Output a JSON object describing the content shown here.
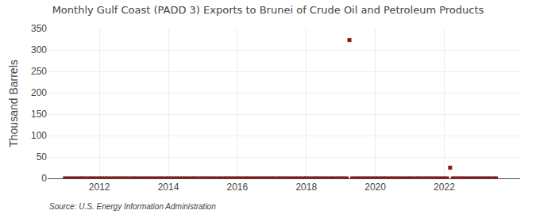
{
  "chart_data": {
    "type": "scatter",
    "title": "Monthly Gulf Coast (PADD 3) Exports to Brunei of Crude Oil and Petroleum Products",
    "ylabel": "Thousand Barrels",
    "annotations": [
      "Source: U.S. Energy Information Administration"
    ],
    "x": [
      2011.0,
      2011.08,
      2011.17,
      2011.25,
      2011.33,
      2011.42,
      2011.5,
      2011.58,
      2011.67,
      2011.75,
      2011.83,
      2011.92,
      2012.0,
      2012.08,
      2012.17,
      2012.25,
      2012.33,
      2012.42,
      2012.5,
      2012.58,
      2012.67,
      2012.75,
      2012.83,
      2012.92,
      2013.0,
      2013.08,
      2013.17,
      2013.25,
      2013.33,
      2013.42,
      2013.5,
      2013.58,
      2013.67,
      2013.75,
      2013.83,
      2013.92,
      2014.0,
      2014.08,
      2014.17,
      2014.25,
      2014.33,
      2014.42,
      2014.5,
      2014.58,
      2014.67,
      2014.75,
      2014.83,
      2014.92,
      2015.0,
      2015.08,
      2015.17,
      2015.25,
      2015.33,
      2015.42,
      2015.5,
      2015.58,
      2015.67,
      2015.75,
      2015.83,
      2015.92,
      2016.0,
      2016.08,
      2016.17,
      2016.25,
      2016.33,
      2016.42,
      2016.5,
      2016.58,
      2016.67,
      2016.75,
      2016.83,
      2016.92,
      2017.0,
      2017.08,
      2017.17,
      2017.25,
      2017.33,
      2017.42,
      2017.5,
      2017.58,
      2017.67,
      2017.75,
      2017.83,
      2017.92,
      2018.0,
      2018.08,
      2018.17,
      2018.25,
      2018.33,
      2018.42,
      2018.5,
      2018.58,
      2018.67,
      2018.75,
      2018.83,
      2018.92,
      2019.0,
      2019.08,
      2019.17,
      2019.25,
      2019.33,
      2019.42,
      2019.5,
      2019.58,
      2019.67,
      2019.75,
      2019.83,
      2019.92,
      2020.0,
      2020.08,
      2020.17,
      2020.25,
      2020.33,
      2020.42,
      2020.5,
      2020.58,
      2020.67,
      2020.75,
      2020.83,
      2020.92,
      2021.0,
      2021.08,
      2021.17,
      2021.25,
      2021.33,
      2021.42,
      2021.5,
      2021.58,
      2021.67,
      2021.75,
      2021.83,
      2021.92,
      2022.0,
      2022.08,
      2022.17,
      2022.25,
      2022.33,
      2022.42,
      2022.5,
      2022.58,
      2022.67,
      2022.75,
      2022.83,
      2022.92,
      2023.0,
      2023.08,
      2023.17,
      2023.25,
      2023.33,
      2023.42,
      2023.5
    ],
    "values": [
      0,
      0,
      0,
      0,
      0,
      0,
      0,
      0,
      0,
      0,
      0,
      0,
      0,
      0,
      0,
      0,
      0,
      0,
      0,
      0,
      0,
      0,
      0,
      0,
      0,
      0,
      0,
      0,
      0,
      0,
      0,
      0,
      0,
      0,
      0,
      0,
      0,
      0,
      0,
      0,
      0,
      0,
      0,
      0,
      0,
      0,
      0,
      0,
      0,
      0,
      0,
      0,
      0,
      0,
      0,
      0,
      0,
      0,
      0,
      0,
      0,
      0,
      0,
      0,
      0,
      0,
      0,
      0,
      0,
      0,
      0,
      0,
      0,
      0,
      0,
      0,
      0,
      0,
      0,
      0,
      0,
      0,
      0,
      0,
      0,
      0,
      0,
      0,
      0,
      0,
      0,
      0,
      0,
      0,
      0,
      0,
      0,
      0,
      0,
      323,
      0,
      0,
      0,
      0,
      0,
      0,
      0,
      0,
      0,
      0,
      0,
      0,
      0,
      0,
      0,
      0,
      0,
      0,
      0,
      0,
      0,
      0,
      0,
      0,
      0,
      0,
      0,
      0,
      0,
      0,
      0,
      0,
      0,
      0,
      25,
      0,
      0,
      0,
      0,
      0,
      0,
      0,
      0,
      0,
      0,
      0,
      0,
      0,
      0,
      0,
      0
    ],
    "color": "#8b1a1a",
    "marker": "square",
    "xlim": [
      2010.5,
      2024.2
    ],
    "xticks": [
      2012,
      2014,
      2016,
      2018,
      2020,
      2022
    ],
    "ylim": [
      0,
      350
    ],
    "yticks": [
      0,
      50,
      100,
      150,
      200,
      250,
      300,
      350
    ],
    "grid": true
  }
}
